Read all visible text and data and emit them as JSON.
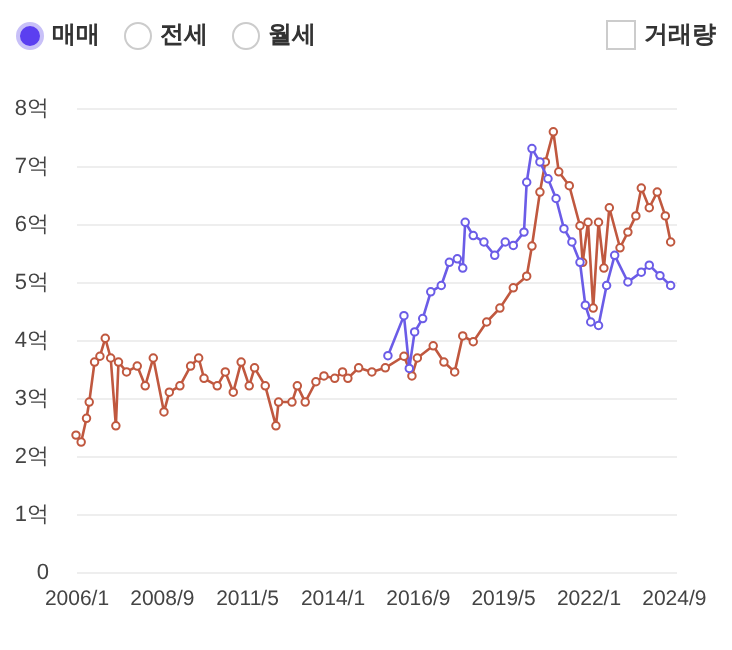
{
  "chart_data": {
    "type": "line",
    "annotations": [
      "매매",
      "전세",
      "월세",
      "거래량"
    ],
    "xlim": [
      "2006-01",
      "2024-10"
    ],
    "xticks": [
      {
        "value": "2006-01",
        "label": "2006/1"
      },
      {
        "value": "2008-09",
        "label": "2008/9"
      },
      {
        "value": "2011-05",
        "label": "2011/5"
      },
      {
        "value": "2014-01",
        "label": "2014/1"
      },
      {
        "value": "2016-09",
        "label": "2016/9"
      },
      {
        "value": "2019-05",
        "label": "2019/5"
      },
      {
        "value": "2022-01",
        "label": "2022/1"
      },
      {
        "value": "2024-09",
        "label": "2024/9"
      }
    ],
    "ylim": [
      0,
      8
    ],
    "yticks": [
      0,
      {
        "value": 1,
        "label": "1억"
      },
      {
        "value": 2,
        "label": "2억"
      },
      {
        "value": 3,
        "label": "3억"
      },
      {
        "value": 4,
        "label": "4억"
      },
      {
        "value": 5,
        "label": "5억"
      },
      {
        "value": 6,
        "label": "6억"
      },
      {
        "value": 7,
        "label": "7억"
      },
      {
        "value": 8,
        "label": "8억"
      }
    ],
    "grid": "y",
    "legend": false,
    "marker": "circle",
    "line_style": "solid",
    "series": [
      {
        "color": "#c0583f",
        "x": [
          "2006-01",
          "2006-03",
          "2006-05",
          "2006-06",
          "2006-08",
          "2006-10",
          "2006-12",
          "2007-02",
          "2007-04",
          "2007-05",
          "2007-08",
          "2007-12",
          "2008-03",
          "2008-06",
          "2008-10",
          "2008-12",
          "2009-04",
          "2009-08",
          "2009-11",
          "2010-01",
          "2010-06",
          "2010-09",
          "2010-12",
          "2011-03",
          "2011-06",
          "2011-08",
          "2011-12",
          "2012-04",
          "2012-05",
          "2012-10",
          "2012-12",
          "2013-03",
          "2013-07",
          "2013-10",
          "2014-02",
          "2014-05",
          "2014-07",
          "2014-11",
          "2015-04",
          "2015-09",
          "2016-04",
          "2016-07",
          "2016-09",
          "2017-03",
          "2017-07",
          "2017-11",
          "2018-02",
          "2018-06",
          "2018-11",
          "2019-04",
          "2019-09",
          "2020-02",
          "2020-04",
          "2020-07",
          "2020-09",
          "2020-12",
          "2021-02",
          "2021-06",
          "2021-10",
          "2021-11",
          "2022-01",
          "2022-03",
          "2022-05",
          "2022-07",
          "2022-09",
          "2023-01",
          "2023-04",
          "2023-07",
          "2023-09",
          "2023-12",
          "2024-03",
          "2024-06",
          "2024-08"
        ],
        "values": [
          2.36,
          2.24,
          2.65,
          2.93,
          3.62,
          3.72,
          4.03,
          3.69,
          2.52,
          3.62,
          3.45,
          3.55,
          3.21,
          3.69,
          2.76,
          3.1,
          3.21,
          3.55,
          3.69,
          3.34,
          3.21,
          3.45,
          3.1,
          3.62,
          3.21,
          3.52,
          3.21,
          2.52,
          2.93,
          2.93,
          3.21,
          2.93,
          3.28,
          3.38,
          3.34,
          3.45,
          3.34,
          3.52,
          3.45,
          3.52,
          3.72,
          3.38,
          3.69,
          3.9,
          3.62,
          3.45,
          4.07,
          3.97,
          4.31,
          4.55,
          4.9,
          5.1,
          5.62,
          6.55,
          7.07,
          7.59,
          6.9,
          6.66,
          5.97,
          5.34,
          6.03,
          4.55,
          6.03,
          5.24,
          6.28,
          5.59,
          5.86,
          6.14,
          6.62,
          6.28,
          6.55,
          6.14,
          5.69
        ]
      },
      {
        "color": "#6b5ce7",
        "x": [
          "2015-10",
          "2016-04",
          "2016-06",
          "2016-08",
          "2016-11",
          "2017-02",
          "2017-06",
          "2017-09",
          "2017-12",
          "2018-02",
          "2018-03",
          "2018-06",
          "2018-10",
          "2019-02",
          "2019-06",
          "2019-09",
          "2020-01",
          "2020-02",
          "2020-04",
          "2020-07",
          "2020-10",
          "2021-01",
          "2021-04",
          "2021-07",
          "2021-10",
          "2021-12",
          "2022-02",
          "2022-05",
          "2022-08",
          "2022-11",
          "2023-04",
          "2023-09",
          "2023-12",
          "2024-04",
          "2024-08"
        ],
        "values": [
          3.73,
          4.42,
          3.51,
          4.14,
          4.37,
          4.83,
          4.94,
          5.34,
          5.4,
          5.24,
          6.03,
          5.8,
          5.69,
          5.46,
          5.69,
          5.63,
          5.86,
          6.72,
          7.3,
          7.07,
          6.78,
          6.44,
          5.92,
          5.69,
          5.34,
          4.6,
          4.31,
          4.25,
          4.94,
          5.46,
          5.0,
          5.17,
          5.29,
          5.11,
          4.94
        ]
      }
    ]
  }
}
